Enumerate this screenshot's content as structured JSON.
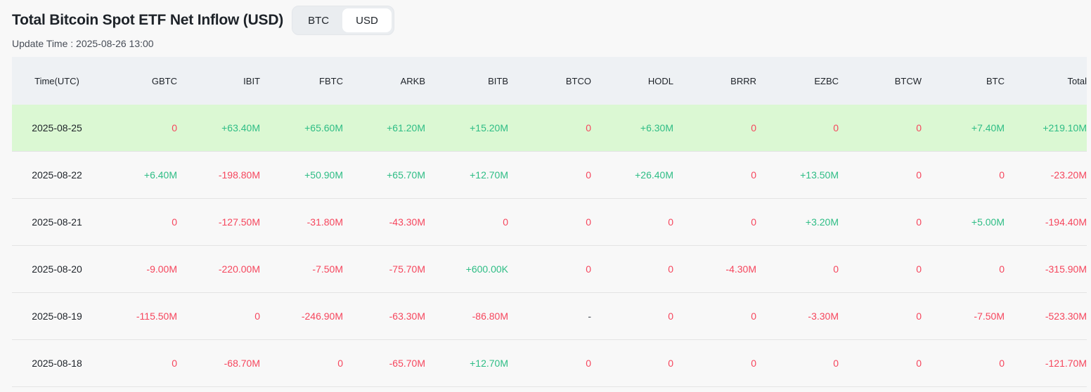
{
  "header": {
    "title": "Total Bitcoin Spot ETF Net Inflow (USD)",
    "toggle": [
      {
        "label": "BTC",
        "active": false
      },
      {
        "label": "USD",
        "active": true
      }
    ],
    "update_time": "Update Time : 2025-08-26 13:00"
  },
  "colors": {
    "positive": "#2ebd85",
    "negative": "#f6465d",
    "highlight_row": "#dbf8d3",
    "header_bg": "#eef1f4"
  },
  "table": {
    "columns": [
      "Time(UTC)",
      "GBTC",
      "IBIT",
      "FBTC",
      "ARKB",
      "BITB",
      "BTCO",
      "HODL",
      "BRRR",
      "EZBC",
      "BTCW",
      "BTC",
      "Total"
    ],
    "rows": [
      {
        "highlight": true,
        "cells": [
          "2025-08-25",
          "0",
          "+63.40M",
          "+65.60M",
          "+61.20M",
          "+15.20M",
          "0",
          "+6.30M",
          "0",
          "0",
          "0",
          "+7.40M",
          "+219.10M"
        ]
      },
      {
        "highlight": false,
        "cells": [
          "2025-08-22",
          "+6.40M",
          "-198.80M",
          "+50.90M",
          "+65.70M",
          "+12.70M",
          "0",
          "+26.40M",
          "0",
          "+13.50M",
          "0",
          "0",
          "-23.20M"
        ]
      },
      {
        "highlight": false,
        "cells": [
          "2025-08-21",
          "0",
          "-127.50M",
          "-31.80M",
          "-43.30M",
          "0",
          "0",
          "0",
          "0",
          "+3.20M",
          "0",
          "+5.00M",
          "-194.40M"
        ]
      },
      {
        "highlight": false,
        "cells": [
          "2025-08-20",
          "-9.00M",
          "-220.00M",
          "-7.50M",
          "-75.70M",
          "+600.00K",
          "0",
          "0",
          "-4.30M",
          "0",
          "0",
          "0",
          "-315.90M"
        ]
      },
      {
        "highlight": false,
        "cells": [
          "2025-08-19",
          "-115.50M",
          "0",
          "-246.90M",
          "-63.30M",
          "-86.80M",
          "-",
          "0",
          "0",
          "-3.30M",
          "0",
          "-7.50M",
          "-523.30M"
        ]
      },
      {
        "highlight": false,
        "cells": [
          "2025-08-18",
          "0",
          "-68.70M",
          "0",
          "-65.70M",
          "+12.70M",
          "0",
          "0",
          "0",
          "0",
          "0",
          "0",
          "-121.70M"
        ]
      }
    ]
  }
}
